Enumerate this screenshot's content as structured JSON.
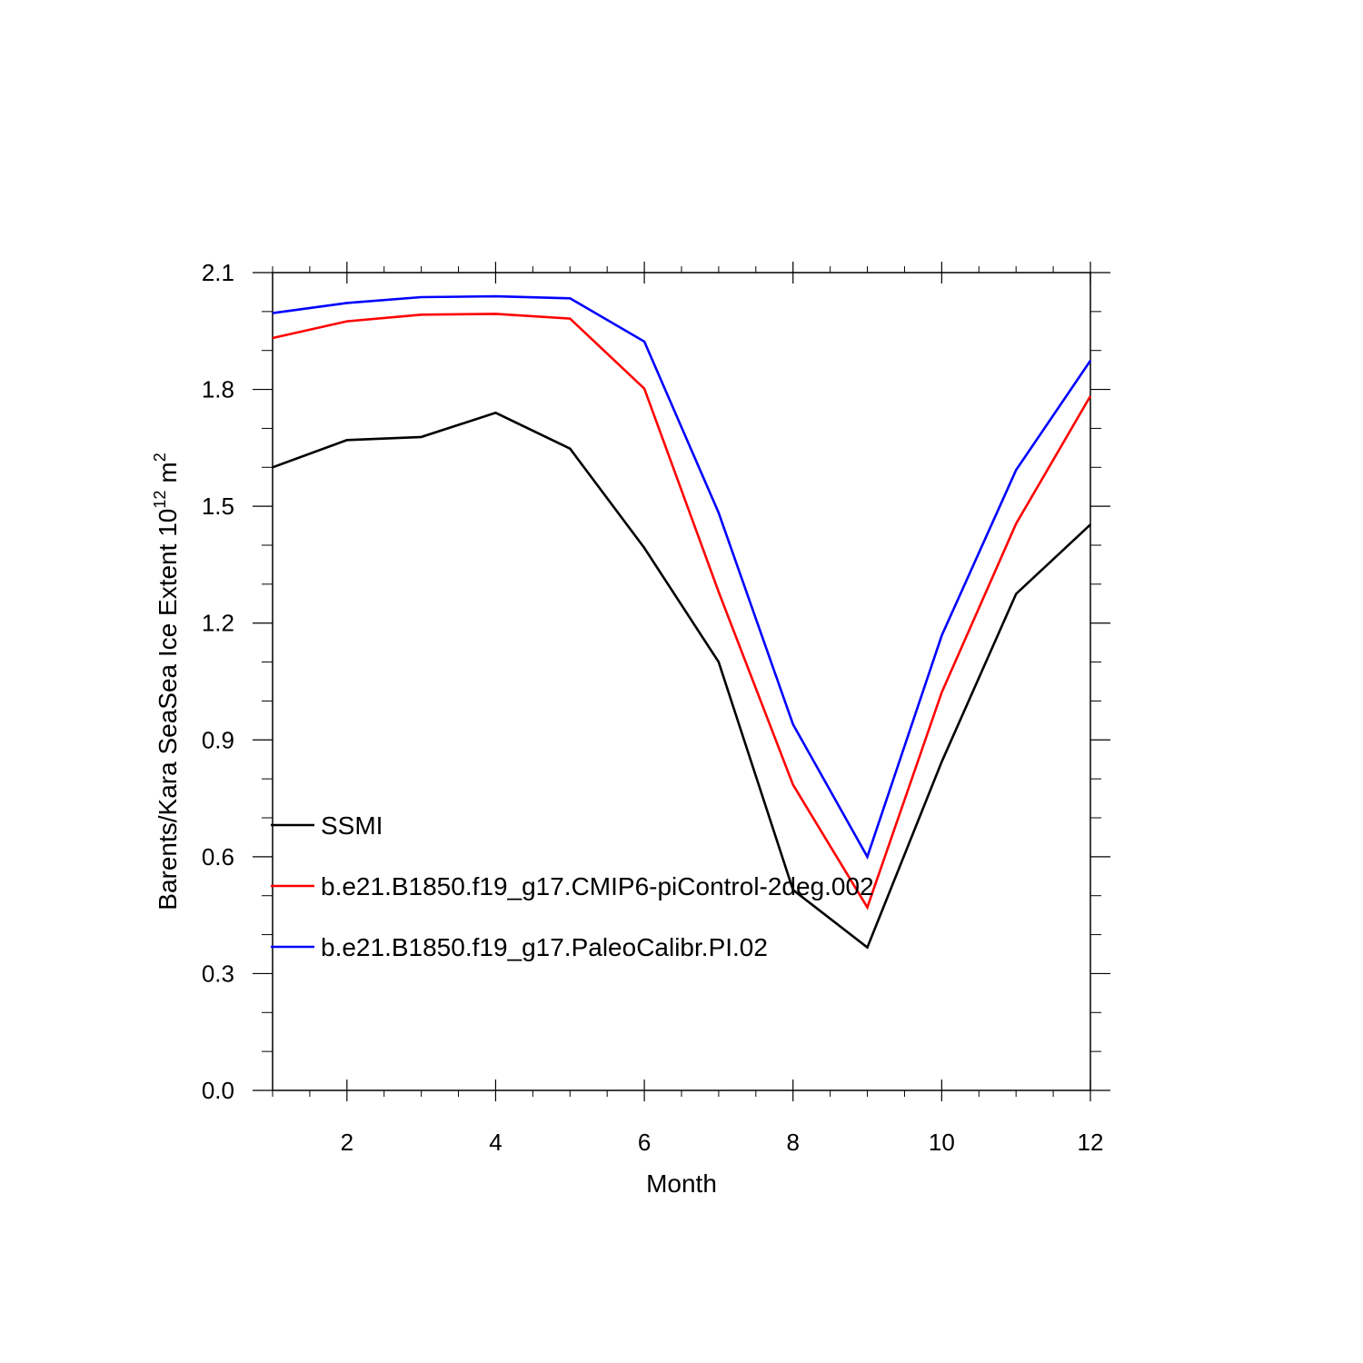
{
  "chart_data": {
    "type": "line",
    "title": "",
    "xlabel": "Month",
    "ylabel": "Barents/Kara SeaSea Ice Extent 10",
    "ylabel_exponent": "12",
    "ylabel_unit": "m",
    "ylabel_unit_exponent": "2",
    "xlim": [
      1,
      12
    ],
    "ylim": [
      0.0,
      2.1
    ],
    "x_ticks": [
      2,
      4,
      6,
      8,
      10,
      12
    ],
    "y_ticks": [
      "0.0",
      "0.3",
      "0.6",
      "0.9",
      "1.2",
      "1.5",
      "1.8",
      "2.1"
    ],
    "grid": false,
    "legend_position": "lower-left",
    "x": [
      1,
      2,
      3,
      4,
      5,
      6,
      7,
      8,
      9,
      10,
      11,
      12
    ],
    "series": [
      {
        "name": "SSMI",
        "color": "#000000",
        "values": [
          1.6,
          1.67,
          1.678,
          1.74,
          1.648,
          1.393,
          1.1,
          0.515,
          0.367,
          0.844,
          1.275,
          1.453
        ]
      },
      {
        "name": "b.e21.B1850.f19_g17.CMIP6-piControl-2deg.002",
        "color": "#ff0000",
        "values": [
          1.932,
          1.975,
          1.992,
          1.994,
          1.982,
          1.802,
          1.28,
          0.785,
          0.47,
          1.022,
          1.455,
          1.783
        ]
      },
      {
        "name": "b.e21.B1850.f19_g17.PaleoCalibr.PI.02",
        "color": "#0000ff",
        "values": [
          1.996,
          2.022,
          2.037,
          2.039,
          2.034,
          1.923,
          1.483,
          0.94,
          0.6,
          1.168,
          1.593,
          1.874
        ]
      }
    ]
  }
}
